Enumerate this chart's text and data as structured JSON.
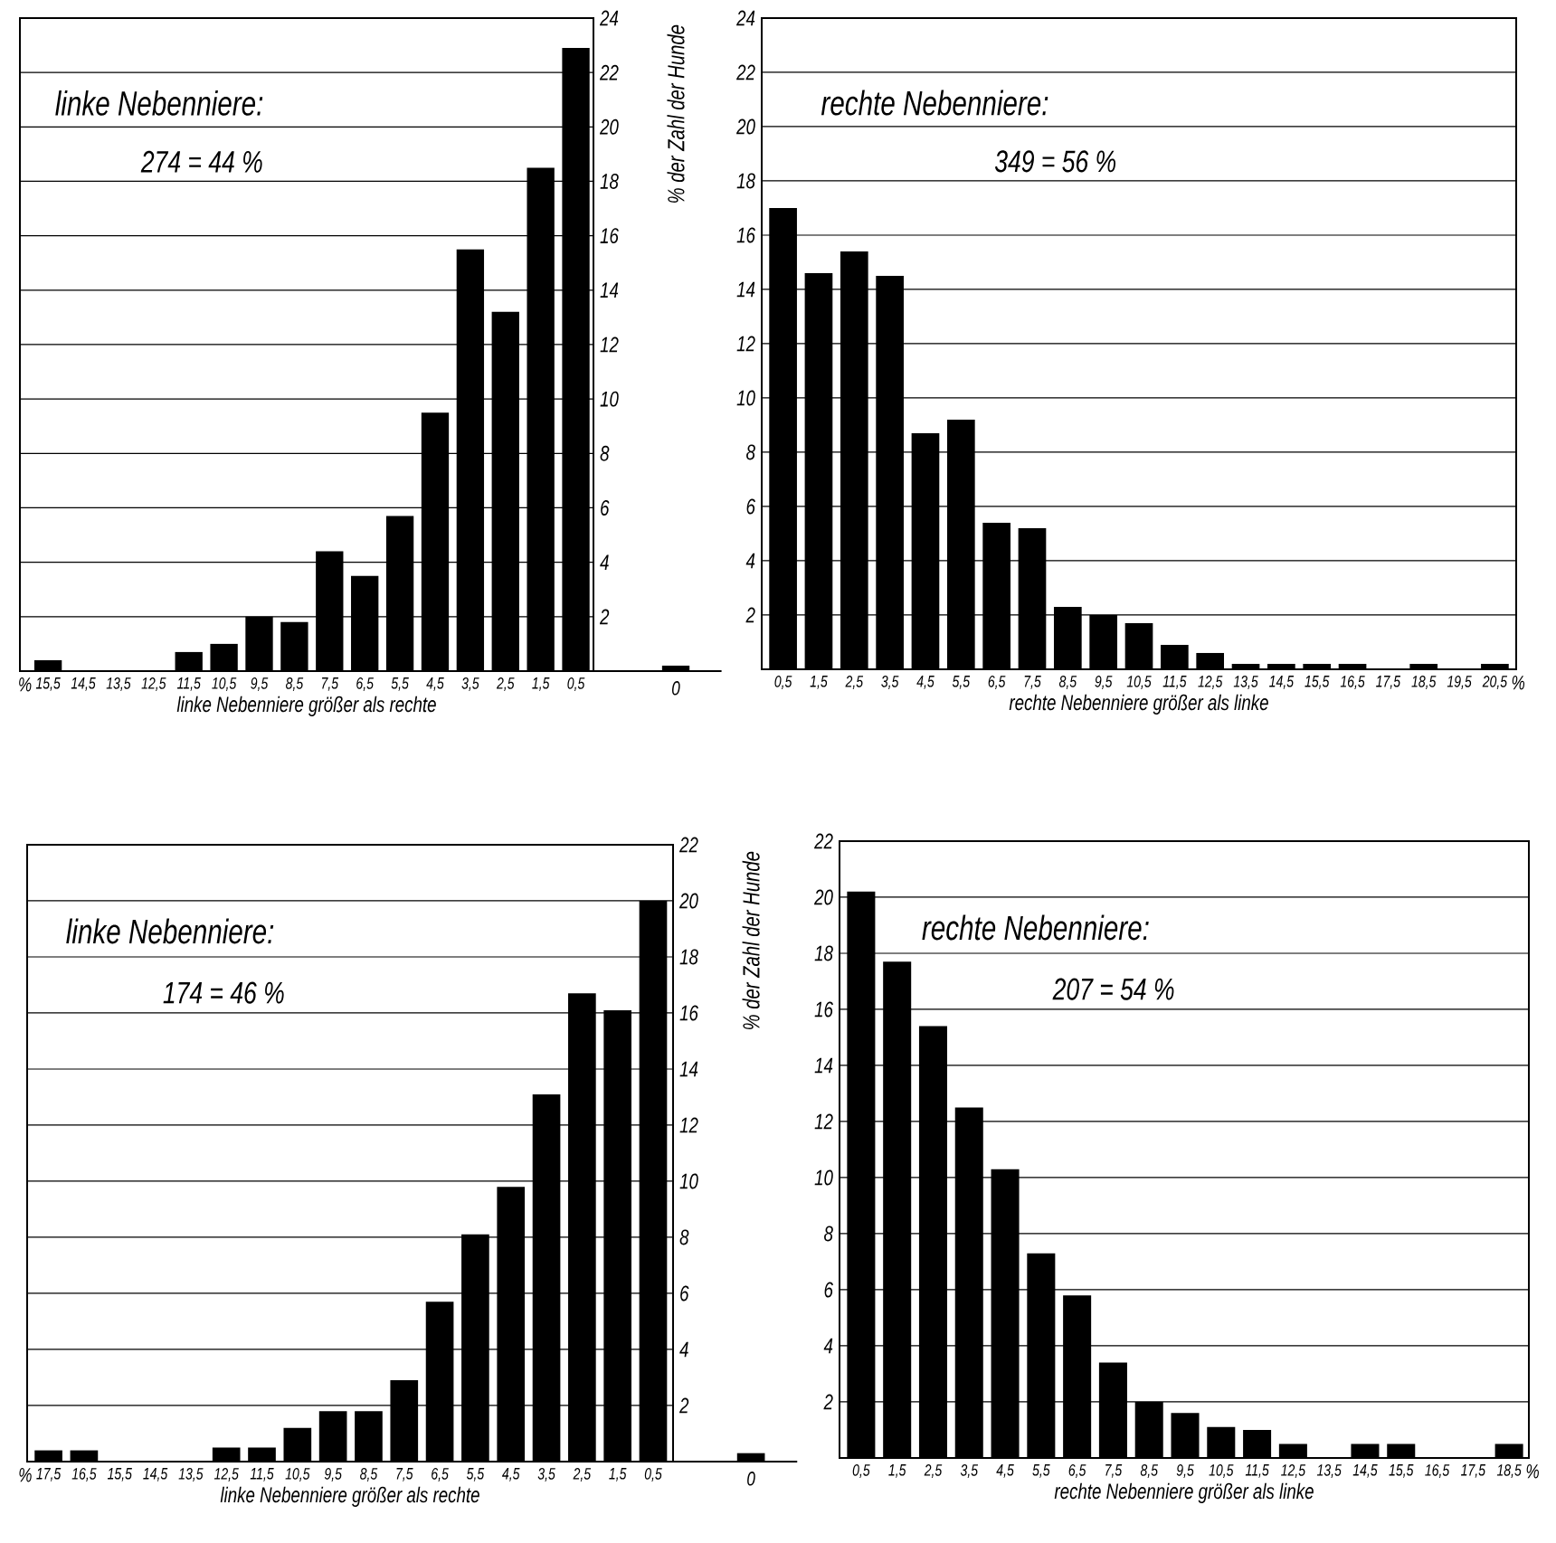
{
  "chart_data": [
    {
      "type": "bar",
      "title": "linke Nebenniere:",
      "subtitle": "274 = 44 %",
      "xlabel": "linke Nebenniere größer als rechte",
      "ylabel": "% der Zahl der Hunde",
      "annotations": [
        "%"
      ],
      "categories": [
        "15,5",
        "14,5",
        "13,5",
        "12,5",
        "11,5",
        "10,5",
        "9,5",
        "8,5",
        "7,5",
        "6,5",
        "5,5",
        "4,5",
        "3,5",
        "2,5",
        "1,5",
        "0,5",
        "0"
      ],
      "values": [
        0.4,
        0,
        0,
        0,
        0.7,
        1.0,
        2.0,
        1.8,
        4.4,
        3.5,
        5.7,
        9.5,
        15.5,
        13.2,
        18.5,
        22.9,
        0.2
      ],
      "color": "#000000",
      "ylim": [
        0,
        24
      ],
      "yticks": [
        2,
        4,
        6,
        8,
        10,
        12,
        14,
        16,
        18,
        20,
        22,
        24
      ],
      "grid": "y"
    },
    {
      "type": "bar",
      "title": "rechte Nebenniere:",
      "subtitle": "349 = 56 %",
      "xlabel": "rechte Nebenniere größer als linke",
      "annotations": [
        "%"
      ],
      "categories": [
        "0,5",
        "1,5",
        "2,5",
        "3,5",
        "4,5",
        "5,5",
        "6,5",
        "7,5",
        "8,5",
        "9,5",
        "10,5",
        "11,5",
        "12,5",
        "13,5",
        "14,5",
        "15,5",
        "16,5",
        "17,5",
        "18,5",
        "19,5",
        "20,5"
      ],
      "values": [
        17.0,
        14.6,
        15.4,
        14.5,
        8.7,
        9.2,
        5.4,
        5.2,
        2.3,
        2.0,
        1.7,
        0.9,
        0.6,
        0.2,
        0.2,
        0.2,
        0.2,
        0,
        0.2,
        0,
        0.2
      ],
      "color": "#000000",
      "ylim": [
        0,
        24
      ],
      "yticks": [
        2,
        4,
        6,
        8,
        10,
        12,
        14,
        16,
        18,
        20,
        22,
        24
      ],
      "grid": "y"
    },
    {
      "type": "bar",
      "title": "linke Nebenniere:",
      "subtitle": "174 = 46 %",
      "xlabel": "linke Nebenniere größer als rechte",
      "ylabel": "% der Zahl der Hunde",
      "annotations": [
        "%"
      ],
      "categories": [
        "17,5",
        "16,5",
        "15,5",
        "14,5",
        "13,5",
        "12,5",
        "11,5",
        "10,5",
        "9,5",
        "8,5",
        "7,5",
        "6,5",
        "5,5",
        "4,5",
        "3,5",
        "2,5",
        "1,5",
        "0,5",
        "0"
      ],
      "values": [
        0.4,
        0.4,
        0,
        0,
        0,
        0.5,
        0.5,
        1.2,
        1.8,
        1.8,
        2.9,
        5.7,
        8.1,
        9.8,
        13.1,
        16.7,
        16.1,
        20.0,
        0.3
      ],
      "color": "#000000",
      "ylim": [
        0,
        22
      ],
      "yticks": [
        2,
        4,
        6,
        8,
        10,
        12,
        14,
        16,
        18,
        20,
        22
      ],
      "grid": "y"
    },
    {
      "type": "bar",
      "title": "rechte Nebenniere:",
      "subtitle": "207 = 54 %",
      "xlabel": "rechte Nebenniere größer als linke",
      "annotations": [
        "%"
      ],
      "categories": [
        "0,5",
        "1,5",
        "2,5",
        "3,5",
        "4,5",
        "5,5",
        "6,5",
        "7,5",
        "8,5",
        "9,5",
        "10,5",
        "11,5",
        "12,5",
        "13,5",
        "14,5",
        "15,5",
        "16,5",
        "17,5",
        "18,5"
      ],
      "values": [
        20.2,
        17.7,
        15.4,
        12.5,
        10.3,
        7.3,
        5.8,
        3.4,
        2.0,
        1.6,
        1.1,
        1.0,
        0.5,
        0,
        0.5,
        0.5,
        0,
        0,
        0.5
      ],
      "color": "#000000",
      "ylim": [
        0,
        22
      ],
      "yticks": [
        2,
        4,
        6,
        8,
        10,
        12,
        14,
        16,
        18,
        20,
        22
      ],
      "grid": "y"
    }
  ]
}
